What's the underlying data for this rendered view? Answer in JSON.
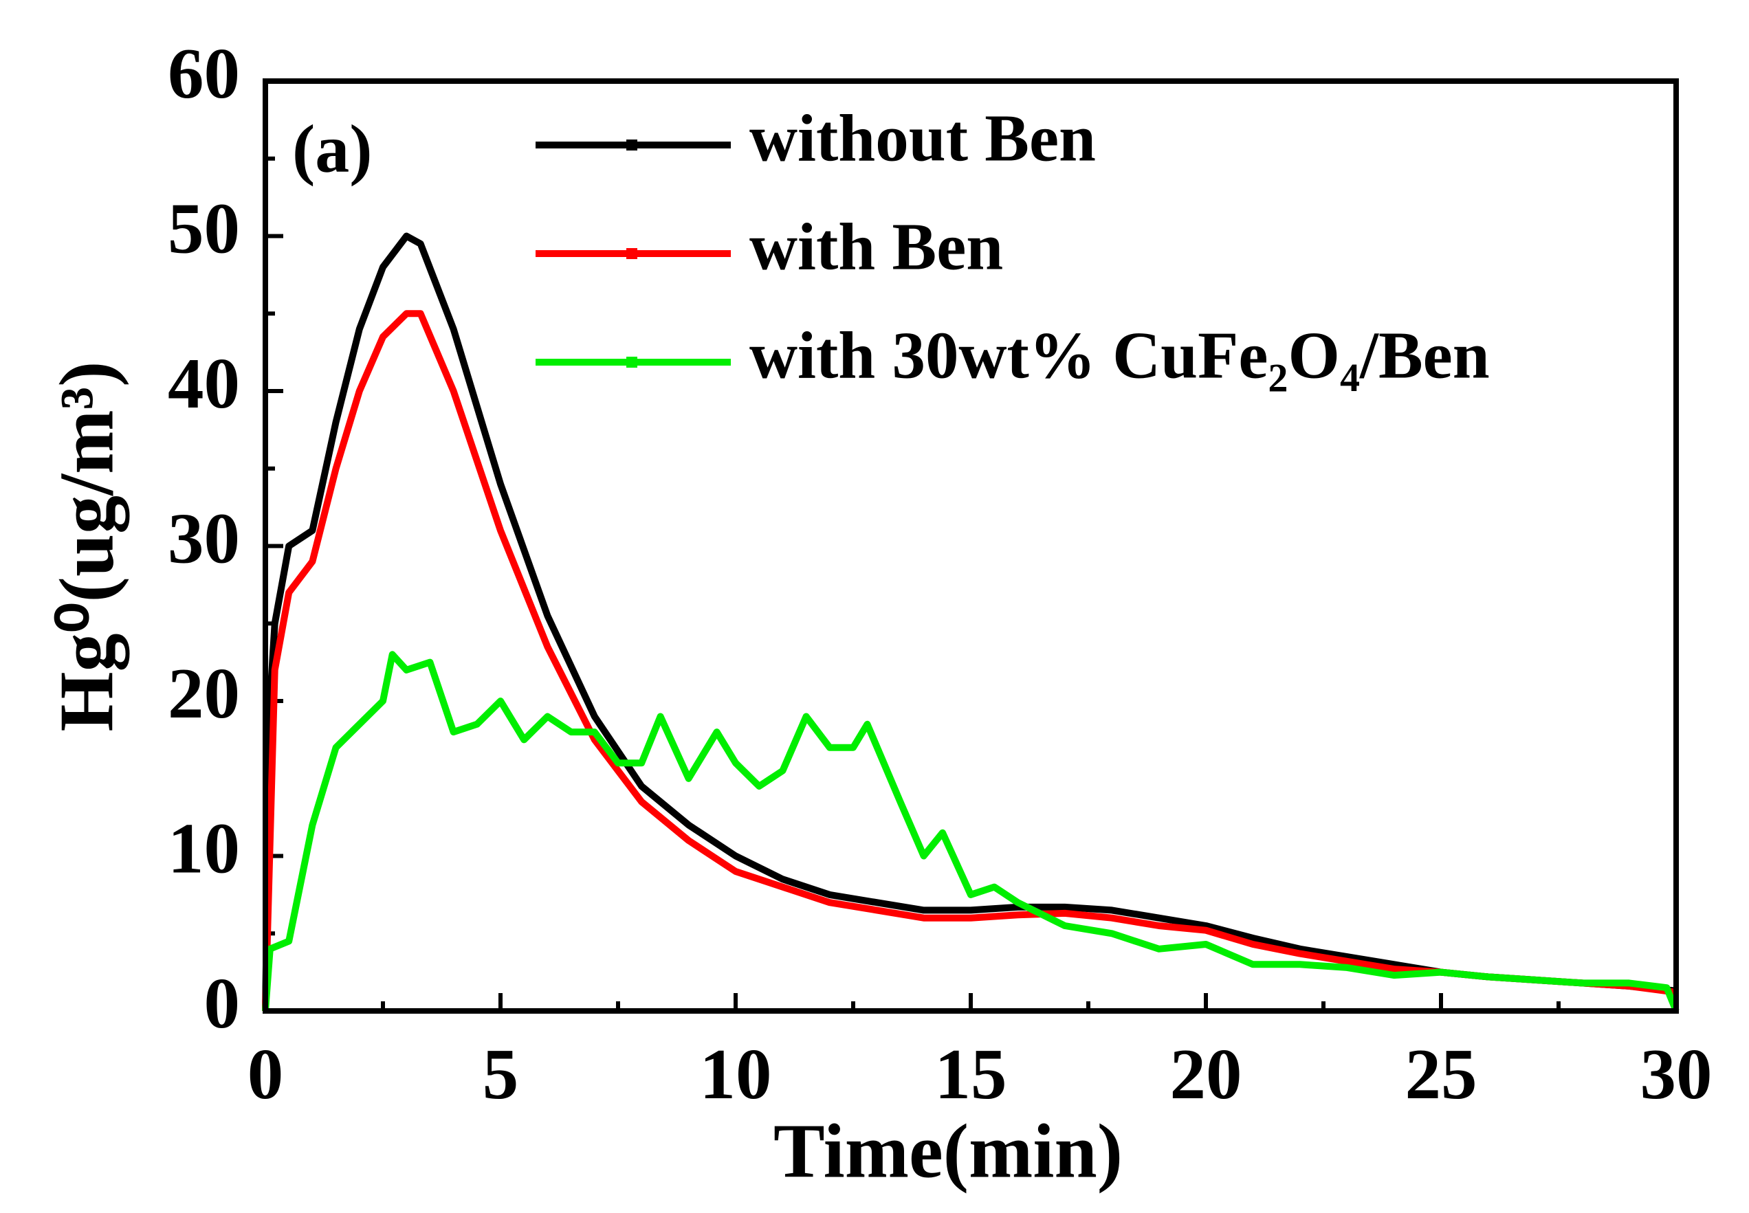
{
  "chart_data": {
    "type": "line",
    "annotation": "(a)",
    "x_label": "Time(min)",
    "y_label": "Hg⁰(ug/m³)",
    "xlim": [
      0,
      30
    ],
    "xticks": [
      0,
      5,
      10,
      15,
      20,
      25,
      30
    ],
    "ylim": [
      0,
      60
    ],
    "yticks": [
      0,
      10,
      20,
      30,
      40,
      50,
      60
    ],
    "series": [
      {
        "name": "without Ben",
        "color": "#000000",
        "x": [
          0,
          0.1,
          0.2,
          0.5,
          1,
          1.5,
          2,
          2.5,
          3,
          3.3,
          4,
          5,
          6,
          7,
          8,
          9,
          10,
          11,
          12,
          13,
          14,
          15,
          16,
          17,
          18,
          19,
          20,
          21,
          22,
          23,
          24,
          25,
          26,
          27,
          28,
          29,
          30
        ],
        "values": [
          0,
          20,
          25,
          30,
          31,
          38,
          44,
          48,
          50,
          49.5,
          44,
          34,
          25.5,
          19,
          14.5,
          12,
          10,
          8.5,
          7.5,
          7,
          6.5,
          6.5,
          6.7,
          6.7,
          6.5,
          6,
          5.5,
          4.7,
          4,
          3.5,
          3,
          2.5,
          2.2,
          2,
          1.8,
          1.6,
          1.3
        ]
      },
      {
        "name": "with Ben",
        "color": "#ff0000",
        "x": [
          0,
          0.2,
          0.5,
          1,
          1.5,
          2,
          2.5,
          3,
          3.3,
          4,
          5,
          6,
          7,
          8,
          9,
          10,
          11,
          12,
          13,
          14,
          15,
          16,
          17,
          18,
          19,
          20,
          21,
          22,
          23,
          24,
          25,
          26,
          27,
          28,
          29,
          30
        ],
        "values": [
          0,
          22,
          27,
          29,
          35,
          40,
          43.5,
          45,
          45,
          40,
          31,
          23.5,
          17.5,
          13.5,
          11,
          9,
          8,
          7,
          6.5,
          6,
          6,
          6.2,
          6.3,
          6,
          5.5,
          5.2,
          4.3,
          3.7,
          3.2,
          2.7,
          2.5,
          2.2,
          2,
          1.8,
          1.6,
          1.2
        ]
      },
      {
        "name": "with 30wt% CuFe₂O₄/Ben",
        "color": "#00ee00",
        "x": [
          0,
          0.1,
          0.5,
          1,
          1.5,
          2,
          2.5,
          2.7,
          3,
          3.5,
          4,
          4.5,
          5,
          5.5,
          6,
          6.5,
          7,
          7.5,
          8,
          8.4,
          9,
          9.6,
          10,
          10.5,
          11,
          11.5,
          12,
          12.5,
          12.8,
          13.5,
          14,
          14.4,
          15,
          15.5,
          16,
          17,
          18,
          19,
          20,
          21,
          22,
          23,
          24,
          25,
          26,
          27,
          28,
          29,
          29.8,
          30
        ],
        "values": [
          0,
          4,
          4.5,
          12,
          17,
          18.5,
          20,
          23,
          22,
          22.5,
          18,
          18.5,
          20,
          17.5,
          19,
          18,
          18,
          16,
          16,
          19,
          15,
          18,
          16,
          14.5,
          15.5,
          19,
          17,
          17,
          18.5,
          13.5,
          10,
          11.5,
          7.5,
          8,
          7,
          5.5,
          5,
          4,
          4.3,
          3,
          3,
          2.8,
          2.3,
          2.5,
          2.2,
          2,
          1.8,
          1.8,
          1.5,
          0
        ]
      }
    ]
  }
}
